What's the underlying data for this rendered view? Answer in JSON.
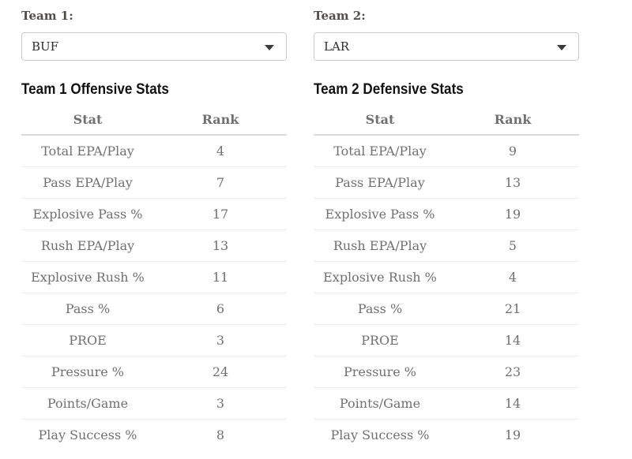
{
  "selectors": {
    "team1": {
      "label": "Team 1:",
      "selected": "BUF"
    },
    "team2": {
      "label": "Team 2:",
      "selected": "LAR"
    }
  },
  "tables": [
    {
      "title": "Team 1 Offensive Stats",
      "columns": [
        "Stat",
        "Rank"
      ],
      "rows": [
        [
          "Total EPA/Play",
          "4"
        ],
        [
          "Pass EPA/Play",
          "7"
        ],
        [
          "Explosive Pass %",
          "17"
        ],
        [
          "Rush EPA/Play",
          "13"
        ],
        [
          "Explosive Rush %",
          "11"
        ],
        [
          "Pass %",
          "6"
        ],
        [
          "PROE",
          "3"
        ],
        [
          "Pressure %",
          "24"
        ],
        [
          "Points/Game",
          "3"
        ],
        [
          "Play Success %",
          "8"
        ]
      ]
    },
    {
      "title": "Team 2 Defensive Stats",
      "columns": [
        "Stat",
        "Rank"
      ],
      "rows": [
        [
          "Total EPA/Play",
          "9"
        ],
        [
          "Pass EPA/Play",
          "13"
        ],
        [
          "Explosive Pass %",
          "19"
        ],
        [
          "Rush EPA/Play",
          "5"
        ],
        [
          "Explosive Rush %",
          "4"
        ],
        [
          "Pass %",
          "21"
        ],
        [
          "PROE",
          "14"
        ],
        [
          "Pressure %",
          "23"
        ],
        [
          "Points/Game",
          "14"
        ],
        [
          "Play Success %",
          "19"
        ]
      ]
    }
  ]
}
